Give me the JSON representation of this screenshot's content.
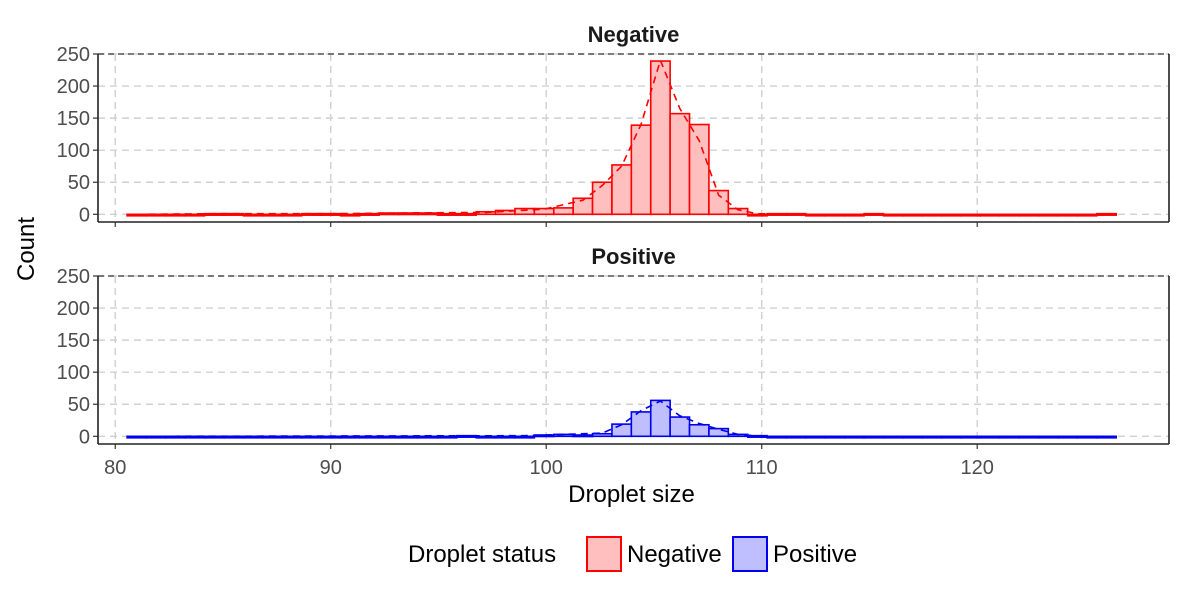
{
  "chart_data": {
    "type": "bar",
    "xlabel": "Droplet size",
    "ylabel": "Count",
    "xlim": [
      79.2,
      128.9
    ],
    "ylim": [
      -12,
      250
    ],
    "x_ticks": [
      80,
      90,
      100,
      110,
      120
    ],
    "y_ticks": [
      0,
      50,
      100,
      150,
      200,
      250
    ],
    "grid": true,
    "bin_width": 0.9,
    "legend": {
      "title": "Droplet status",
      "position": "bottom",
      "items": [
        {
          "label": "Negative",
          "color": "#ff0000",
          "fill": "#ffbfbf"
        },
        {
          "label": "Positive",
          "color": "#0000ee",
          "fill": "#bfbfff"
        }
      ]
    },
    "panels": [
      {
        "name": "Negative",
        "bins": [
          {
            "x": 81.0,
            "count": 0
          },
          {
            "x": 81.9,
            "count": 0
          },
          {
            "x": 82.8,
            "count": 0
          },
          {
            "x": 83.7,
            "count": 0
          },
          {
            "x": 84.6,
            "count": 1
          },
          {
            "x": 85.5,
            "count": 1
          },
          {
            "x": 86.4,
            "count": 0
          },
          {
            "x": 87.3,
            "count": 0
          },
          {
            "x": 88.2,
            "count": 0
          },
          {
            "x": 89.1,
            "count": 1
          },
          {
            "x": 90.0,
            "count": 1
          },
          {
            "x": 90.9,
            "count": 0
          },
          {
            "x": 91.8,
            "count": 1
          },
          {
            "x": 92.7,
            "count": 2
          },
          {
            "x": 93.6,
            "count": 2
          },
          {
            "x": 94.5,
            "count": 2
          },
          {
            "x": 95.4,
            "count": 1
          },
          {
            "x": 96.3,
            "count": 1
          },
          {
            "x": 97.2,
            "count": 4
          },
          {
            "x": 98.1,
            "count": 6
          },
          {
            "x": 99.0,
            "count": 9
          },
          {
            "x": 99.9,
            "count": 9
          },
          {
            "x": 100.8,
            "count": 10
          },
          {
            "x": 101.7,
            "count": 25
          },
          {
            "x": 102.6,
            "count": 50
          },
          {
            "x": 103.5,
            "count": 77
          },
          {
            "x": 104.4,
            "count": 139
          },
          {
            "x": 105.3,
            "count": 239
          },
          {
            "x": 106.2,
            "count": 157
          },
          {
            "x": 107.1,
            "count": 140
          },
          {
            "x": 108.0,
            "count": 37
          },
          {
            "x": 108.9,
            "count": 9
          },
          {
            "x": 109.8,
            "count": 0
          },
          {
            "x": 110.7,
            "count": 1
          },
          {
            "x": 111.6,
            "count": 1
          },
          {
            "x": 112.5,
            "count": 0
          },
          {
            "x": 113.4,
            "count": 0
          },
          {
            "x": 114.3,
            "count": 0
          },
          {
            "x": 115.2,
            "count": 1
          },
          {
            "x": 116.1,
            "count": 0
          },
          {
            "x": 117.0,
            "count": 0
          },
          {
            "x": 117.9,
            "count": 0
          },
          {
            "x": 118.8,
            "count": 0
          },
          {
            "x": 119.7,
            "count": 0
          },
          {
            "x": 120.6,
            "count": 0
          },
          {
            "x": 121.5,
            "count": 0
          },
          {
            "x": 122.4,
            "count": 0
          },
          {
            "x": 123.3,
            "count": 0
          },
          {
            "x": 124.2,
            "count": 0
          },
          {
            "x": 125.1,
            "count": 0
          },
          {
            "x": 126.0,
            "count": 1
          }
        ],
        "density_curve": [
          [
            81.0,
            0
          ],
          [
            84.6,
            1
          ],
          [
            90.0,
            1
          ],
          [
            93.6,
            2
          ],
          [
            97.2,
            3
          ],
          [
            99.9,
            8
          ],
          [
            101.7,
            22
          ],
          [
            102.6,
            45
          ],
          [
            103.5,
            75
          ],
          [
            104.4,
            140
          ],
          [
            105.3,
            240
          ],
          [
            106.2,
            165
          ],
          [
            107.1,
            115
          ],
          [
            108.0,
            30
          ],
          [
            108.9,
            7
          ],
          [
            109.8,
            1
          ],
          [
            112.0,
            0
          ],
          [
            126.0,
            0
          ]
        ]
      },
      {
        "name": "Positive",
        "bins": [
          {
            "x": 81.0,
            "count": 0
          },
          {
            "x": 81.9,
            "count": 0
          },
          {
            "x": 82.8,
            "count": 0
          },
          {
            "x": 83.7,
            "count": 0
          },
          {
            "x": 84.6,
            "count": 0
          },
          {
            "x": 85.5,
            "count": 0
          },
          {
            "x": 86.4,
            "count": 0
          },
          {
            "x": 87.3,
            "count": 0
          },
          {
            "x": 88.2,
            "count": 0
          },
          {
            "x": 89.1,
            "count": 0
          },
          {
            "x": 90.0,
            "count": 0
          },
          {
            "x": 90.9,
            "count": 0
          },
          {
            "x": 91.8,
            "count": 0
          },
          {
            "x": 92.7,
            "count": 0
          },
          {
            "x": 93.6,
            "count": 0
          },
          {
            "x": 94.5,
            "count": 0
          },
          {
            "x": 95.4,
            "count": 0
          },
          {
            "x": 96.3,
            "count": 1
          },
          {
            "x": 97.2,
            "count": 0
          },
          {
            "x": 98.1,
            "count": 0
          },
          {
            "x": 99.0,
            "count": 0
          },
          {
            "x": 99.9,
            "count": 2
          },
          {
            "x": 100.8,
            "count": 3
          },
          {
            "x": 101.7,
            "count": 2
          },
          {
            "x": 102.6,
            "count": 4
          },
          {
            "x": 103.5,
            "count": 19
          },
          {
            "x": 104.4,
            "count": 38
          },
          {
            "x": 105.3,
            "count": 56
          },
          {
            "x": 106.2,
            "count": 30
          },
          {
            "x": 107.1,
            "count": 18
          },
          {
            "x": 108.0,
            "count": 12
          },
          {
            "x": 108.9,
            "count": 3
          },
          {
            "x": 109.8,
            "count": 1
          },
          {
            "x": 110.7,
            "count": 0
          },
          {
            "x": 111.6,
            "count": 0
          },
          {
            "x": 112.5,
            "count": 0
          },
          {
            "x": 113.4,
            "count": 0
          },
          {
            "x": 114.3,
            "count": 0
          },
          {
            "x": 115.2,
            "count": 0
          },
          {
            "x": 116.1,
            "count": 0
          },
          {
            "x": 117.0,
            "count": 0
          },
          {
            "x": 117.9,
            "count": 0
          },
          {
            "x": 118.8,
            "count": 0
          },
          {
            "x": 119.7,
            "count": 0
          },
          {
            "x": 120.6,
            "count": 0
          },
          {
            "x": 121.5,
            "count": 0
          },
          {
            "x": 122.4,
            "count": 0
          },
          {
            "x": 123.3,
            "count": 0
          },
          {
            "x": 124.2,
            "count": 0
          },
          {
            "x": 125.1,
            "count": 0
          },
          {
            "x": 126.0,
            "count": 0
          }
        ],
        "density_curve": [
          [
            81.0,
            0
          ],
          [
            99.0,
            1
          ],
          [
            100.8,
            3
          ],
          [
            102.6,
            5
          ],
          [
            103.5,
            18
          ],
          [
            104.4,
            40
          ],
          [
            105.3,
            55
          ],
          [
            106.2,
            32
          ],
          [
            107.1,
            20
          ],
          [
            108.0,
            11
          ],
          [
            108.9,
            3
          ],
          [
            110.0,
            0
          ],
          [
            126.0,
            0
          ]
        ]
      }
    ]
  }
}
